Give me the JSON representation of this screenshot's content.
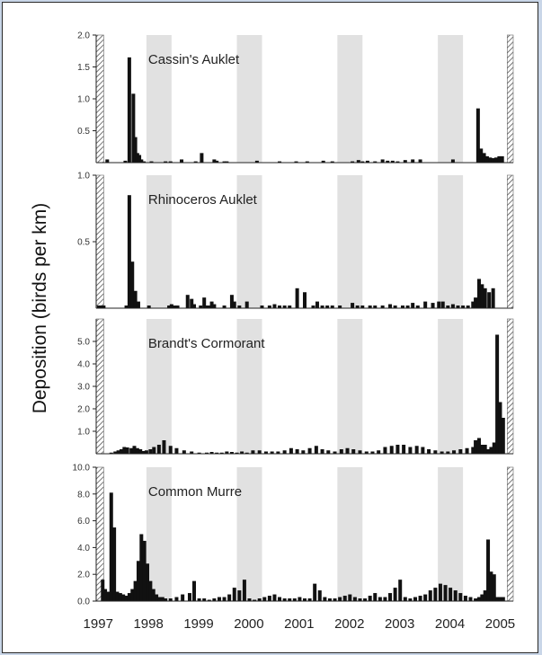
{
  "chart_data": {
    "type": "bar",
    "ylabel": "Deposition (birds per km)",
    "x_tick_labels": [
      "1997",
      "1998",
      "1999",
      "2000",
      "2001",
      "2002",
      "2003",
      "2004",
      "2005"
    ],
    "xlim": [
      1997.0,
      2005.3
    ],
    "x_unit": "year",
    "shaded_periods": [
      [
        1998.0,
        1998.5
      ],
      [
        1999.8,
        2000.3
      ],
      [
        2001.8,
        2002.3
      ],
      [
        2003.8,
        2004.3
      ]
    ],
    "hatched_periods": [
      [
        1997.0,
        1997.15
      ],
      [
        2005.18,
        2005.3
      ]
    ],
    "panels": [
      {
        "title": "Cassin's Auklet",
        "ylim": [
          0,
          2.0
        ],
        "yticks": [
          0.5,
          1.0,
          1.5,
          2.0
        ],
        "ytick_labels": [
          "0.5",
          "1.0",
          "1.5",
          "2.0"
        ],
        "x": [
          1997.22,
          1997.58,
          1997.66,
          1997.74,
          1997.78,
          1997.82,
          1997.86,
          1997.9,
          1997.95,
          1998.1,
          1998.38,
          1998.48,
          1998.7,
          1998.98,
          1999.1,
          1999.35,
          1999.4,
          1999.55,
          1999.6,
          2000.2,
          2000.65,
          2000.98,
          2001.2,
          2001.52,
          2001.7,
          2002.1,
          2002.22,
          2002.3,
          2002.4,
          2002.55,
          2002.7,
          2002.8,
          2002.9,
          2003.0,
          2003.15,
          2003.3,
          2003.45,
          2004.1,
          2004.6,
          2004.66,
          2004.72,
          2004.78,
          2004.84,
          2004.9,
          2004.96,
          2005.02,
          2005.08
        ],
        "values": [
          0.05,
          0.03,
          1.65,
          1.08,
          0.4,
          0.15,
          0.12,
          0.05,
          0.02,
          0.02,
          0.02,
          0.02,
          0.05,
          0.02,
          0.15,
          0.05,
          0.03,
          0.02,
          0.02,
          0.03,
          0.02,
          0.02,
          0.02,
          0.03,
          0.02,
          0.02,
          0.04,
          0.02,
          0.03,
          0.02,
          0.05,
          0.03,
          0.03,
          0.02,
          0.04,
          0.05,
          0.05,
          0.05,
          0.85,
          0.22,
          0.15,
          0.1,
          0.08,
          0.07,
          0.08,
          0.1,
          0.1
        ]
      },
      {
        "title": "Rhinoceros Auklet",
        "ylim": [
          0,
          1.0
        ],
        "yticks": [
          0.5,
          1.0
        ],
        "ytick_labels": [
          "0.5",
          "1.0"
        ],
        "x": [
          1997.05,
          1997.1,
          1997.15,
          1997.6,
          1997.66,
          1997.72,
          1997.78,
          1997.84,
          1998.05,
          1998.45,
          1998.5,
          1998.56,
          1998.62,
          1998.82,
          1998.9,
          1998.95,
          1999.08,
          1999.15,
          1999.2,
          1999.25,
          1999.3,
          1999.35,
          1999.55,
          1999.7,
          1999.75,
          1999.85,
          2000.0,
          2000.3,
          2000.45,
          2000.55,
          2000.65,
          2000.75,
          2000.85,
          2001.0,
          2001.15,
          2001.32,
          2001.4,
          2001.5,
          2001.6,
          2001.7,
          2001.85,
          2002.1,
          2002.2,
          2002.3,
          2002.45,
          2002.55,
          2002.7,
          2002.85,
          2002.95,
          2003.1,
          2003.2,
          2003.3,
          2003.4,
          2003.55,
          2003.7,
          2003.82,
          2003.9,
          2004.0,
          2004.1,
          2004.2,
          2004.3,
          2004.4,
          2004.5,
          2004.55,
          2004.62,
          2004.68,
          2004.74,
          2004.82,
          2004.9
        ],
        "values": [
          0.02,
          0.02,
          0.02,
          0.02,
          0.85,
          0.35,
          0.13,
          0.05,
          0.02,
          0.02,
          0.03,
          0.02,
          0.02,
          0.1,
          0.07,
          0.03,
          0.02,
          0.08,
          0.02,
          0.02,
          0.05,
          0.03,
          0.02,
          0.1,
          0.05,
          0.02,
          0.05,
          0.02,
          0.02,
          0.03,
          0.02,
          0.02,
          0.02,
          0.15,
          0.12,
          0.02,
          0.05,
          0.02,
          0.02,
          0.02,
          0.02,
          0.04,
          0.02,
          0.02,
          0.02,
          0.02,
          0.02,
          0.03,
          0.02,
          0.02,
          0.02,
          0.04,
          0.02,
          0.05,
          0.04,
          0.05,
          0.05,
          0.02,
          0.03,
          0.02,
          0.02,
          0.02,
          0.05,
          0.08,
          0.22,
          0.18,
          0.15,
          0.12,
          0.15
        ]
      },
      {
        "title": "Brandt's Cormorant",
        "ylim": [
          0,
          6.0
        ],
        "yticks": [
          1.0,
          2.0,
          3.0,
          4.0,
          5.0
        ],
        "ytick_labels": [
          "1.0",
          "2.0",
          "3.0",
          "4.0",
          "5.0"
        ],
        "x": [
          1997.3,
          1997.38,
          1997.44,
          1997.5,
          1997.56,
          1997.62,
          1997.7,
          1997.76,
          1997.82,
          1997.88,
          1997.94,
          1998.0,
          1998.08,
          1998.15,
          1998.25,
          1998.35,
          1998.48,
          1998.6,
          1998.75,
          1998.9,
          1999.05,
          1999.2,
          1999.3,
          1999.4,
          1999.5,
          1999.6,
          1999.7,
          1999.8,
          1999.9,
          2000.0,
          2000.12,
          2000.25,
          2000.38,
          2000.5,
          2000.62,
          2000.75,
          2000.88,
          2001.0,
          2001.12,
          2001.25,
          2001.38,
          2001.5,
          2001.62,
          2001.75,
          2001.88,
          2002.0,
          2002.12,
          2002.25,
          2002.38,
          2002.5,
          2002.62,
          2002.75,
          2002.88,
          2003.0,
          2003.12,
          2003.25,
          2003.38,
          2003.5,
          2003.62,
          2003.75,
          2003.88,
          2004.0,
          2004.12,
          2004.25,
          2004.38,
          2004.5,
          2004.55,
          2004.62,
          2004.68,
          2004.74,
          2004.8,
          2004.86,
          2004.92,
          2004.98,
          2005.04,
          2005.1
        ],
        "values": [
          0.05,
          0.1,
          0.15,
          0.2,
          0.3,
          0.28,
          0.25,
          0.35,
          0.25,
          0.2,
          0.12,
          0.15,
          0.2,
          0.3,
          0.4,
          0.6,
          0.35,
          0.25,
          0.15,
          0.1,
          0.05,
          0.05,
          0.08,
          0.05,
          0.05,
          0.1,
          0.08,
          0.05,
          0.1,
          0.05,
          0.15,
          0.15,
          0.1,
          0.1,
          0.1,
          0.15,
          0.25,
          0.2,
          0.15,
          0.25,
          0.35,
          0.2,
          0.15,
          0.1,
          0.2,
          0.25,
          0.2,
          0.15,
          0.1,
          0.1,
          0.15,
          0.3,
          0.35,
          0.4,
          0.4,
          0.3,
          0.35,
          0.3,
          0.2,
          0.15,
          0.1,
          0.1,
          0.15,
          0.2,
          0.25,
          0.3,
          0.6,
          0.7,
          0.4,
          0.4,
          0.2,
          0.3,
          0.5,
          5.3,
          2.3,
          1.6
        ]
      },
      {
        "title": "Common Murre",
        "ylim": [
          0,
          10.0
        ],
        "yticks": [
          0.0,
          2.0,
          4.0,
          6.0,
          8.0,
          10.0
        ],
        "ytick_labels": [
          "0.0",
          "2.0",
          "4.0",
          "6.0",
          "8.0",
          "10.0"
        ],
        "x": [
          1997.13,
          1997.18,
          1997.24,
          1997.3,
          1997.36,
          1997.42,
          1997.48,
          1997.54,
          1997.6,
          1997.66,
          1997.72,
          1997.78,
          1997.84,
          1997.9,
          1997.96,
          1998.02,
          1998.08,
          1998.14,
          1998.2,
          1998.26,
          1998.32,
          1998.38,
          1998.48,
          1998.6,
          1998.72,
          1998.86,
          1998.95,
          1999.05,
          1999.15,
          1999.25,
          1999.35,
          1999.45,
          1999.55,
          1999.65,
          1999.75,
          1999.85,
          1999.95,
          2000.05,
          2000.15,
          2000.25,
          2000.35,
          2000.45,
          2000.55,
          2000.65,
          2000.75,
          2000.85,
          2000.95,
          2001.05,
          2001.15,
          2001.25,
          2001.35,
          2001.45,
          2001.55,
          2001.65,
          2001.75,
          2001.85,
          2001.95,
          2002.05,
          2002.15,
          2002.25,
          2002.35,
          2002.45,
          2002.55,
          2002.65,
          2002.75,
          2002.85,
          2002.95,
          2003.05,
          2003.15,
          2003.25,
          2003.35,
          2003.45,
          2003.55,
          2003.65,
          2003.75,
          2003.85,
          2003.95,
          2004.05,
          2004.15,
          2004.25,
          2004.35,
          2004.45,
          2004.55,
          2004.62,
          2004.68,
          2004.74,
          2004.8,
          2004.86,
          2004.92,
          2004.98,
          2005.04,
          2005.1
        ],
        "values": [
          1.6,
          0.9,
          0.7,
          8.1,
          5.5,
          0.7,
          0.6,
          0.5,
          0.4,
          0.6,
          0.9,
          1.5,
          3.0,
          5.0,
          4.5,
          2.8,
          1.5,
          0.9,
          0.5,
          0.3,
          0.3,
          0.2,
          0.2,
          0.3,
          0.5,
          0.6,
          1.5,
          0.2,
          0.2,
          0.1,
          0.2,
          0.3,
          0.3,
          0.5,
          1.0,
          0.8,
          1.6,
          0.2,
          0.1,
          0.2,
          0.3,
          0.4,
          0.5,
          0.3,
          0.2,
          0.2,
          0.2,
          0.3,
          0.2,
          0.2,
          1.3,
          0.8,
          0.3,
          0.2,
          0.2,
          0.3,
          0.4,
          0.5,
          0.3,
          0.2,
          0.2,
          0.4,
          0.6,
          0.3,
          0.3,
          0.6,
          1.0,
          1.6,
          0.3,
          0.2,
          0.3,
          0.4,
          0.5,
          0.8,
          1.0,
          1.3,
          1.2,
          1.0,
          0.8,
          0.6,
          0.4,
          0.3,
          0.2,
          0.3,
          0.5,
          0.8,
          4.6,
          2.2,
          2.0,
          0.3,
          0.3,
          0.3
        ]
      }
    ]
  }
}
